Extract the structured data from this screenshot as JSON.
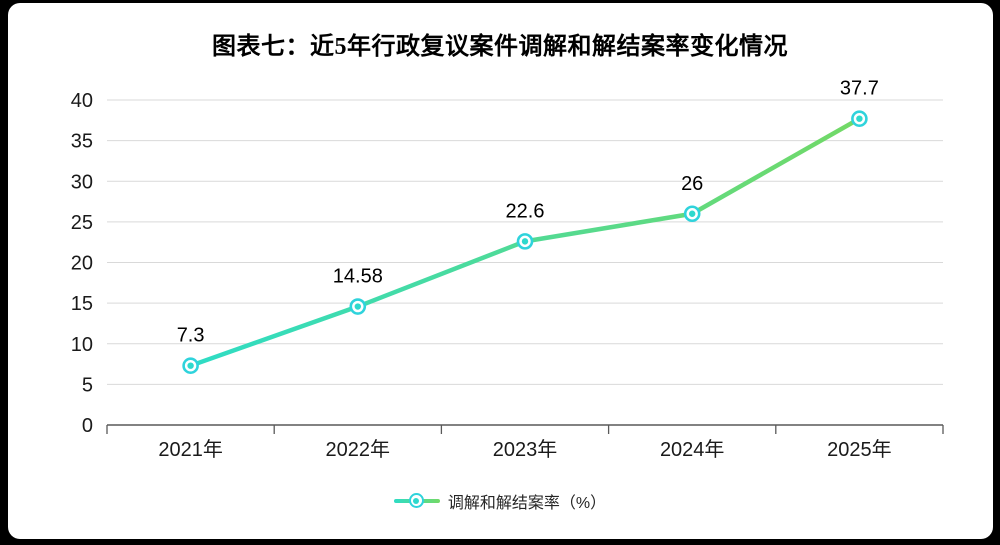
{
  "window": {
    "frame_color": "#000000",
    "background": "#ffffff"
  },
  "chart_data": {
    "type": "line",
    "title": "图表七：近5年行政复议案件调解和解结案率变化情况",
    "categories": [
      "2021年",
      "2022年",
      "2023年",
      "2024年",
      "2025年"
    ],
    "series": [
      {
        "name": "调解和解结案率（%）",
        "values": [
          7.3,
          14.58,
          22.6,
          26,
          37.7
        ]
      }
    ],
    "data_labels": [
      "7.3",
      "14.58",
      "22.6",
      "26",
      "37.7"
    ],
    "xlabel": "",
    "ylabel": "",
    "ylim": [
      0,
      40
    ],
    "yticks": [
      0,
      5,
      10,
      15,
      20,
      25,
      30,
      35,
      40
    ],
    "grid": true,
    "legend_position": "bottom",
    "colors": {
      "line_gradient_start": "#2edcc5",
      "line_gradient_end": "#73d966",
      "marker_ring": "#2fd3dc",
      "marker_center": "#2ed9cd",
      "marker_fill": "#ffffff",
      "gridline": "#d9d9d9",
      "axis": "#595959",
      "tick_label": "#1a1a1a",
      "data_label": "#000000"
    }
  },
  "legend": {
    "label": "调解和解结案率（%）"
  }
}
